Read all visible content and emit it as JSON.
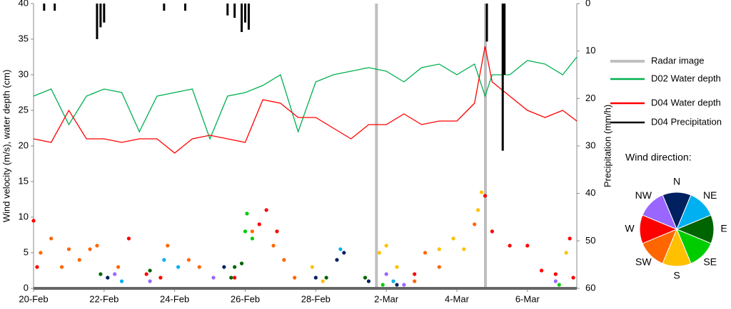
{
  "chart_data": {
    "type": "combo",
    "y_label": "Wind velocity (m/s), water depth (cm)",
    "y2_label": "Precipitation (mm/h)",
    "xlim": [
      0,
      15.4
    ],
    "xticks": [
      {
        "value": 0,
        "label": "20-Feb"
      },
      {
        "value": 2,
        "label": "22-Feb"
      },
      {
        "value": 4,
        "label": "24-Feb"
      },
      {
        "value": 6,
        "label": "26-Feb"
      },
      {
        "value": 8,
        "label": "28-Feb"
      },
      {
        "value": 10,
        "label": "2-Mar"
      },
      {
        "value": 12,
        "label": "4-Mar"
      },
      {
        "value": 14,
        "label": "6-Mar"
      }
    ],
    "ylim": [
      0,
      40
    ],
    "yticks": [
      0,
      5,
      10,
      15,
      20,
      25,
      30,
      35,
      40
    ],
    "y2lim": [
      60,
      0
    ],
    "y2ticks": [
      0,
      10,
      20,
      30,
      40,
      50,
      60
    ],
    "series": [
      {
        "name": "Radar image",
        "type": "vline",
        "color": "#bfbfbf",
        "x": [
          9.72,
          12.81
        ]
      },
      {
        "name": "D02 Water depth",
        "type": "line",
        "color": "#00b050",
        "x": [
          0,
          0.5,
          1,
          1.5,
          2,
          2.5,
          3,
          3.5,
          4,
          4.5,
          5,
          5.5,
          6,
          6.5,
          7,
          7.5,
          8,
          8.5,
          9,
          9.5,
          10,
          10.5,
          11,
          11.5,
          12,
          12.5,
          12.8,
          13,
          13.5,
          14,
          14.5,
          15,
          15.4
        ],
        "values": [
          27,
          28,
          23,
          27,
          28,
          27.5,
          22,
          27,
          27.5,
          28,
          21,
          27,
          27.5,
          28.5,
          30,
          22,
          29,
          30,
          30.5,
          31,
          30.5,
          29,
          31,
          31.5,
          30,
          31.5,
          27,
          30,
          30,
          32,
          31.5,
          30,
          32.5
        ]
      },
      {
        "name": "D04 Water depth",
        "type": "line",
        "color": "#ff0000",
        "x": [
          0,
          0.5,
          1,
          1.5,
          2,
          2.5,
          3,
          3.5,
          4,
          4.5,
          5,
          5.5,
          6,
          6.5,
          7,
          7.5,
          8,
          8.5,
          9,
          9.5,
          10,
          10.5,
          11,
          11.5,
          12,
          12.5,
          12.8,
          13,
          13.5,
          14,
          14.5,
          15,
          15.4
        ],
        "values": [
          21,
          20.5,
          25,
          21,
          21,
          20.5,
          21,
          21,
          19,
          21,
          21.5,
          21,
          20.5,
          26.5,
          26,
          24,
          24,
          22.5,
          21,
          23,
          23,
          24.5,
          23,
          23.5,
          23.5,
          26,
          34,
          29,
          27,
          25,
          24,
          25,
          23.5
        ]
      },
      {
        "name": "D04 Precipitation",
        "type": "precip",
        "axis": "y2",
        "color": "#000000",
        "x": [
          0.3,
          0.6,
          1.8,
          1.9,
          2.0,
          3.7,
          4.3,
          5.5,
          5.7,
          5.9,
          6.0,
          6.1,
          12.85,
          13.3,
          13.35
        ],
        "values": [
          1.5,
          1.5,
          7.5,
          5,
          4,
          1.5,
          1.5,
          2.5,
          3,
          6,
          4,
          5.5,
          8,
          31,
          15
        ]
      }
    ],
    "wind_title": "Wind direction:",
    "wind": [
      {
        "name": "N",
        "color": "#002060",
        "x": [
          2.1,
          5.4,
          8.0,
          8.6,
          8.8,
          9.5,
          10.3
        ],
        "values": [
          1.5,
          3,
          1.5,
          4,
          5,
          1,
          0.5
        ]
      },
      {
        "name": "NE",
        "color": "#00b0f0",
        "x": [
          2.5,
          3.7,
          4.1,
          8.7,
          10.2
        ],
        "values": [
          1,
          4,
          3,
          5.5,
          1
        ]
      },
      {
        "name": "E",
        "color": "#006400",
        "x": [
          1.9,
          3.3,
          5.6,
          5.7,
          5.9,
          9.4,
          8.3
        ],
        "values": [
          2,
          2.5,
          1.5,
          3,
          3.5,
          1.5,
          1.5
        ]
      },
      {
        "name": "SE",
        "color": "#00cc00",
        "x": [
          6.0,
          6.05,
          6.2,
          9.9,
          14.9
        ],
        "values": [
          8,
          10.5,
          7,
          0.5,
          0.5
        ]
      },
      {
        "name": "S",
        "color": "#ffc000",
        "x": [
          9.8,
          10.0,
          10.3,
          11.5,
          11.9,
          12.2,
          12.6,
          12.7,
          15.1,
          7.9,
          8.2
        ],
        "values": [
          5,
          6,
          3,
          5.5,
          7,
          5.5,
          11,
          13.5,
          5,
          3,
          1
        ]
      },
      {
        "name": "SW",
        "color": "#ff6600",
        "x": [
          0.2,
          0.5,
          0.8,
          1.0,
          1.3,
          1.6,
          1.8,
          2.4,
          3.8,
          4.4,
          4.7,
          6.2,
          6.8,
          7.1,
          7.4,
          11.1,
          11.5,
          12.5,
          10.8
        ],
        "values": [
          5,
          7,
          3,
          5.5,
          4,
          5.5,
          6,
          3,
          6,
          4,
          3,
          8,
          6,
          4,
          1.5,
          5,
          3,
          9,
          1
        ]
      },
      {
        "name": "W",
        "color": "#ff0000",
        "x": [
          0,
          0.1,
          2.7,
          3.2,
          3.6,
          5.7,
          6.4,
          6.6,
          6.9,
          10.8,
          12.8,
          13.0,
          13.5,
          14.0,
          14.4,
          14.8,
          15.2,
          15.3
        ],
        "values": [
          9.5,
          3,
          7,
          2,
          1.5,
          1.5,
          9,
          11,
          8,
          2,
          13,
          8,
          6,
          6,
          2.5,
          2,
          7,
          1.5
        ]
      },
      {
        "name": "NW",
        "color": "#9966ff",
        "x": [
          2.3,
          3.3,
          5.1,
          10.0,
          10.5,
          14.8
        ],
        "values": [
          2,
          1,
          1.5,
          2,
          0.5,
          1
        ]
      }
    ]
  }
}
